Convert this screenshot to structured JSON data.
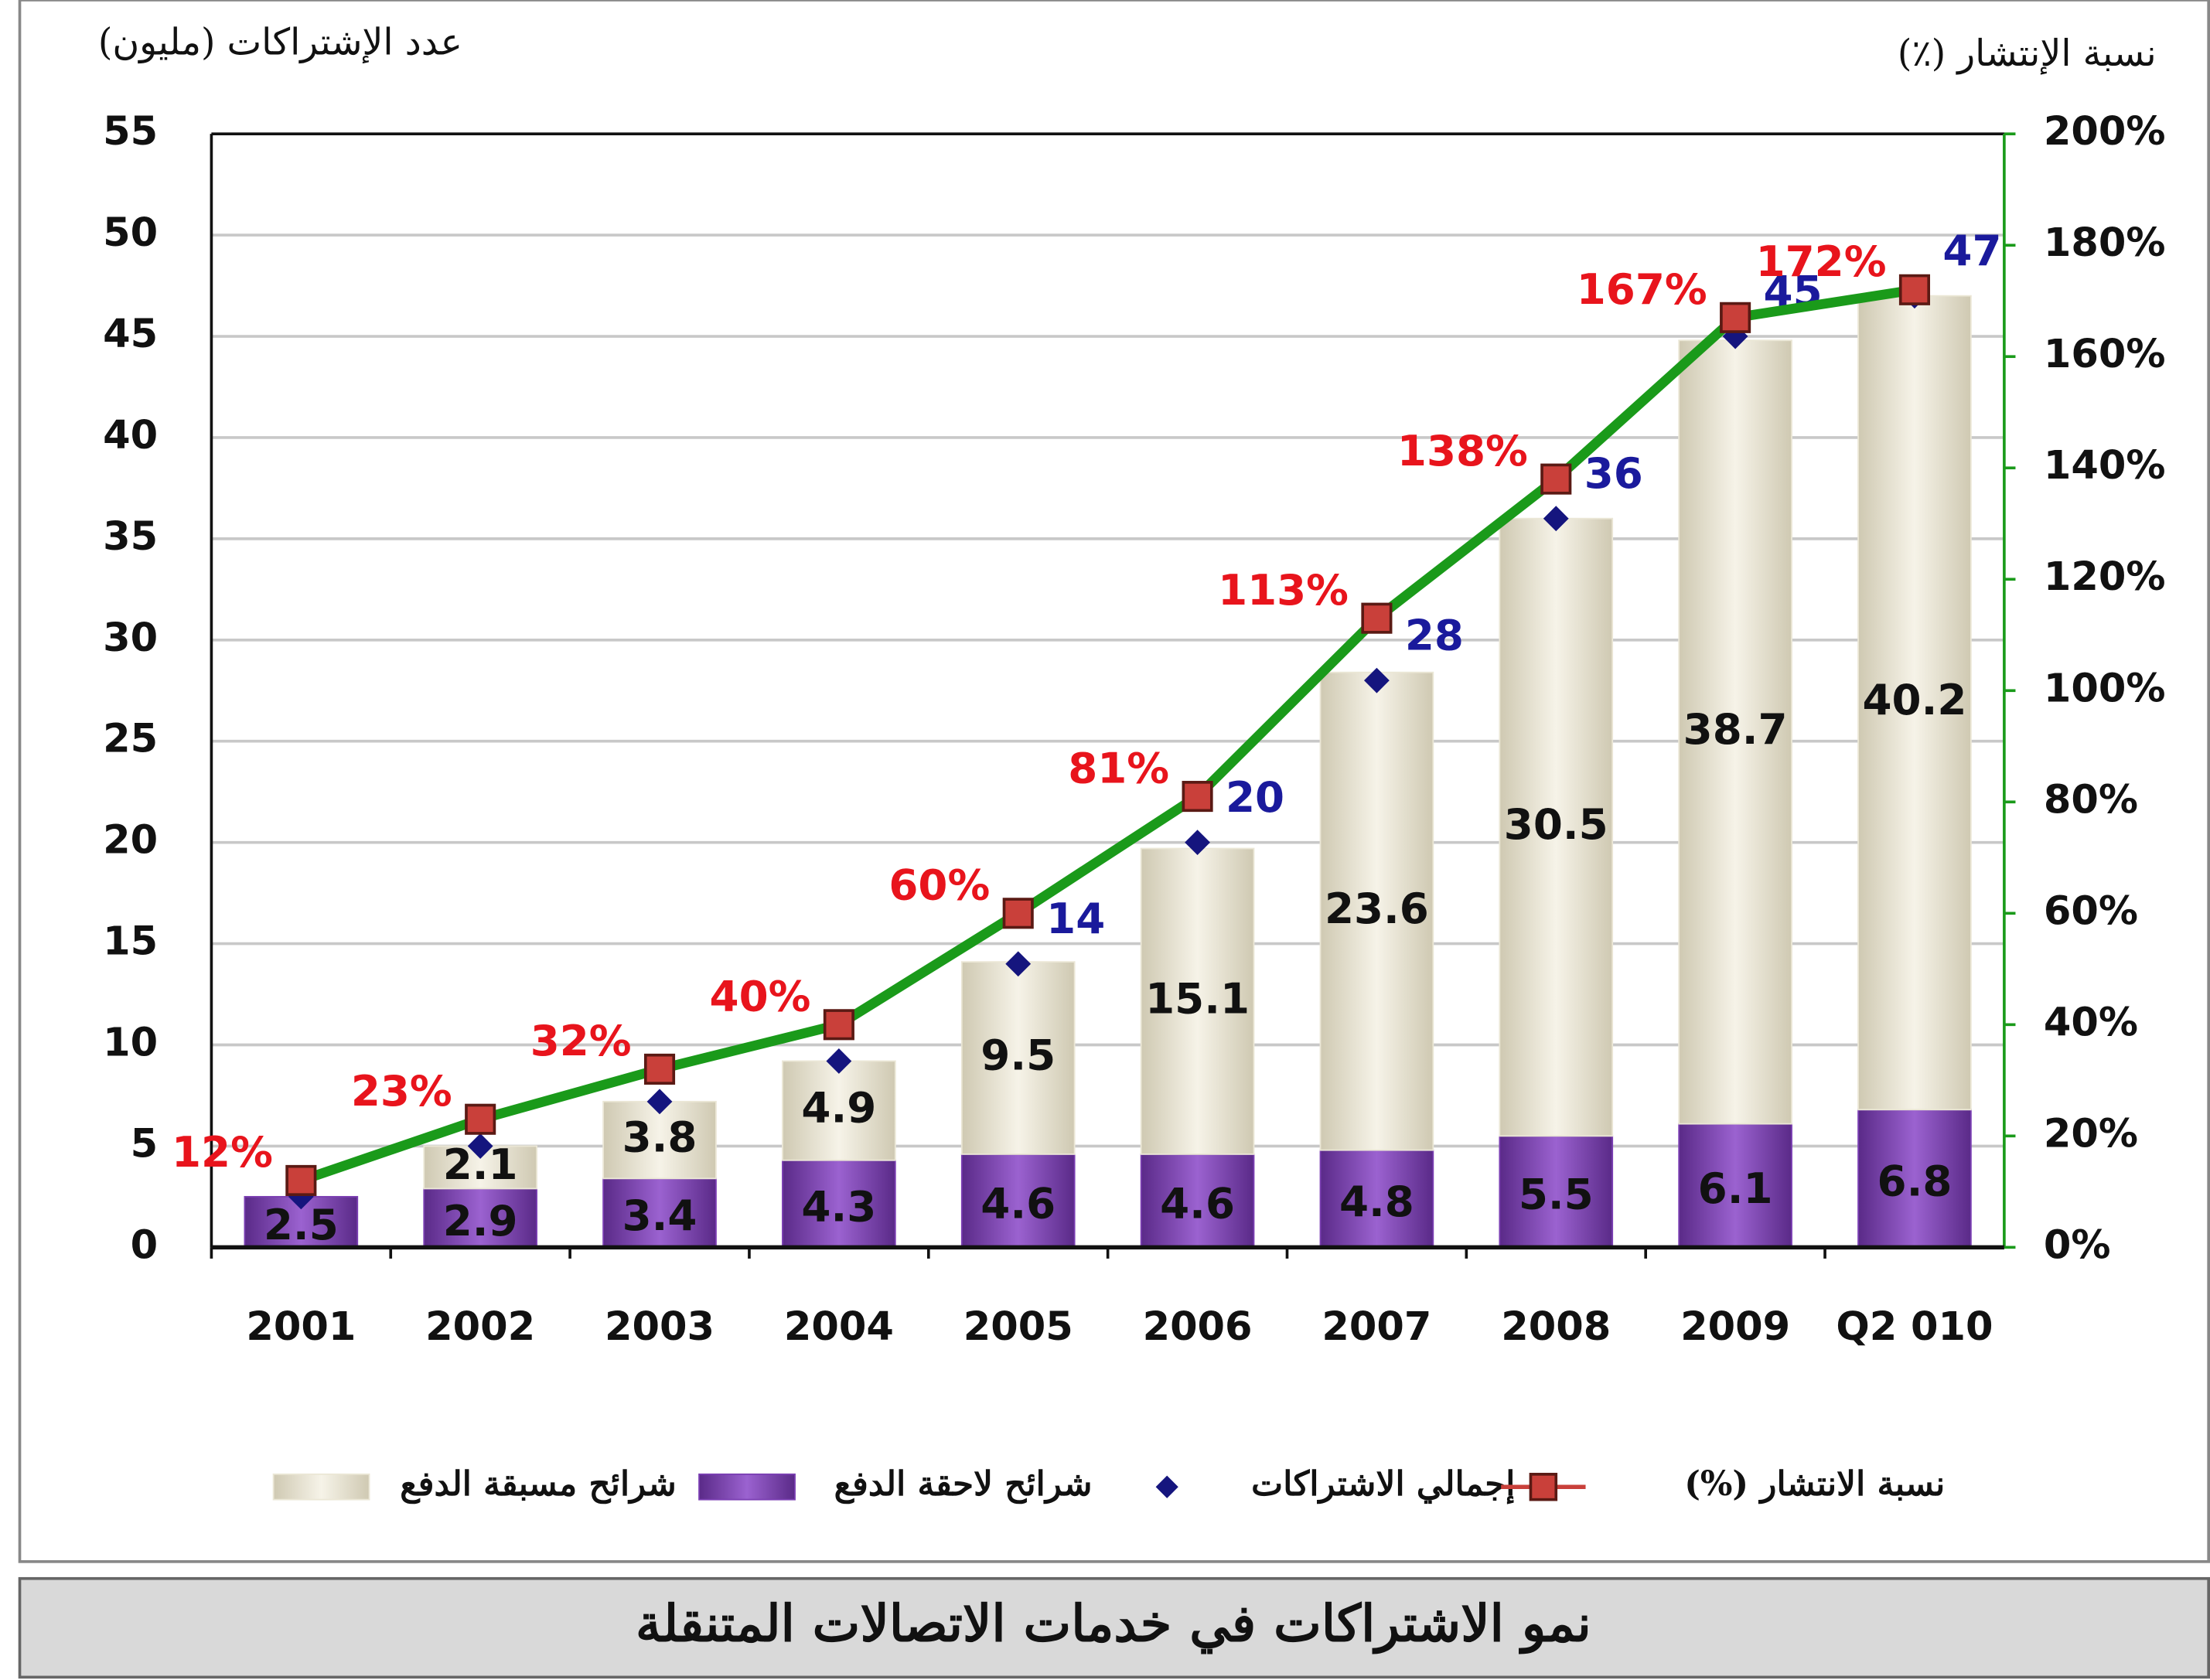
{
  "chart_data": {
    "type": "bar",
    "title": "نمو الاشتراكات في خدمات الاتصالات المتنقلة",
    "y_axis_label": "عدد الإشتراكات (مليون)",
    "y2_axis_label": "نسبة الإنتشار (٪)",
    "categories": [
      "2001",
      "2002",
      "2003",
      "2004",
      "2005",
      "2006",
      "2007",
      "2008",
      "2009",
      "Q2 010"
    ],
    "stacked": true,
    "grid": true,
    "legend": "bottom",
    "ylim": [
      0,
      55
    ],
    "yticks": [
      0,
      5,
      10,
      15,
      20,
      25,
      30,
      35,
      40,
      45,
      50,
      55
    ],
    "y2lim": [
      0,
      200
    ],
    "y2ticks": [
      {
        "value": 0,
        "label": "0%"
      },
      {
        "value": 20,
        "label": "20%"
      },
      {
        "value": 40,
        "label": "40%"
      },
      {
        "value": 60,
        "label": "60%"
      },
      {
        "value": 80,
        "label": "80%"
      },
      {
        "value": 100,
        "label": "100%"
      },
      {
        "value": 120,
        "label": "120%"
      },
      {
        "value": 140,
        "label": "140%"
      },
      {
        "value": 160,
        "label": "160%"
      },
      {
        "value": 180,
        "label": "180%"
      },
      {
        "value": 200,
        "label": "200%"
      }
    ],
    "series": [
      {
        "name": "شرائح لاحقة الدفع",
        "type": "bar",
        "color": "#7b3fb3",
        "values": [
          2.5,
          2.9,
          3.4,
          4.3,
          4.6,
          4.6,
          4.8,
          5.5,
          6.1,
          6.8
        ]
      },
      {
        "name": "شرائح مسبقة الدفع",
        "type": "bar",
        "color": "#ebe7d6",
        "values": [
          null,
          2.1,
          3.8,
          4.9,
          9.5,
          15.1,
          23.6,
          30.5,
          38.7,
          40.2
        ]
      },
      {
        "name": "إجمالي الاشتراكات",
        "type": "scatter",
        "color": "#15157e",
        "values": [
          2.5,
          5.0,
          7.2,
          9.2,
          14,
          20,
          28,
          36,
          45,
          47
        ],
        "value_labels": [
          null,
          null,
          null,
          null,
          "14",
          "20",
          "28",
          "36",
          "45",
          "47"
        ]
      },
      {
        "name": "نسبة الانتشار (%)",
        "type": "line",
        "axis": "y2",
        "color": "#1a9a1a",
        "marker_color": "#c9403a",
        "values": [
          12,
          23,
          32,
          40,
          60,
          81,
          113,
          138,
          167,
          172
        ],
        "value_labels": [
          "12%",
          "23%",
          "32%",
          "40%",
          "60%",
          "81%",
          "113%",
          "138%",
          "167%",
          "172%"
        ]
      }
    ]
  }
}
